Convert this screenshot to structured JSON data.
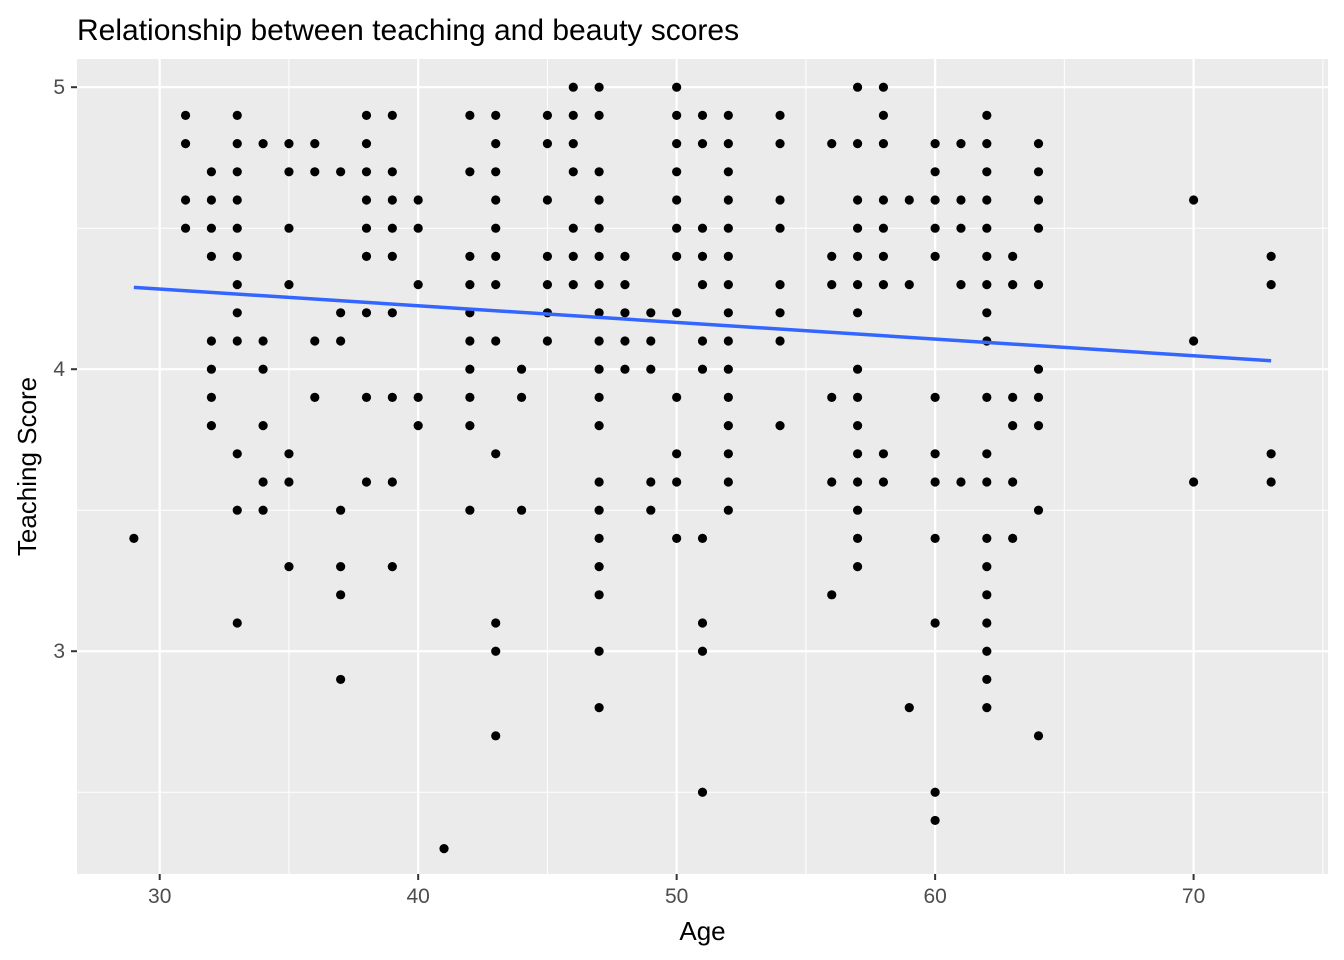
{
  "chart_data": {
    "type": "scatter",
    "title": "Relationship between teaching and beauty scores",
    "xlabel": "Age",
    "ylabel": "Teaching Score",
    "xlim": [
      26.8,
      75.2
    ],
    "ylim": [
      2.21,
      5.1
    ],
    "x_ticks": [
      30,
      40,
      50,
      60,
      70
    ],
    "y_ticks": [
      3,
      4,
      5
    ],
    "grid": true,
    "legend": "none",
    "colors": {
      "panel": "#ebebeb",
      "grid_major": "#ffffff",
      "points": "#000000",
      "trend": "#3366ff",
      "tick_text": "#4d4d4d"
    },
    "trend_line": {
      "x": [
        29,
        73
      ],
      "y": [
        4.29,
        4.03
      ]
    },
    "points": [
      [
        29,
        3.4
      ],
      [
        31,
        4.9
      ],
      [
        31,
        4.8
      ],
      [
        31,
        4.6
      ],
      [
        31,
        4.5
      ],
      [
        32,
        4.7
      ],
      [
        32,
        4.6
      ],
      [
        32,
        4.5
      ],
      [
        32,
        4.4
      ],
      [
        32,
        4.1
      ],
      [
        32,
        4.0
      ],
      [
        32,
        3.9
      ],
      [
        32,
        3.8
      ],
      [
        33,
        4.9
      ],
      [
        33,
        4.8
      ],
      [
        33,
        4.7
      ],
      [
        33,
        4.6
      ],
      [
        33,
        4.5
      ],
      [
        33,
        4.4
      ],
      [
        33,
        4.3
      ],
      [
        33,
        4.2
      ],
      [
        33,
        4.1
      ],
      [
        33,
        3.7
      ],
      [
        33,
        3.5
      ],
      [
        33,
        3.1
      ],
      [
        34,
        4.8
      ],
      [
        34,
        4.1
      ],
      [
        34,
        4.0
      ],
      [
        34,
        3.8
      ],
      [
        34,
        3.6
      ],
      [
        34,
        3.5
      ],
      [
        35,
        4.8
      ],
      [
        35,
        4.7
      ],
      [
        35,
        4.5
      ],
      [
        35,
        4.3
      ],
      [
        35,
        3.7
      ],
      [
        35,
        3.6
      ],
      [
        35,
        3.3
      ],
      [
        36,
        4.8
      ],
      [
        36,
        4.7
      ],
      [
        36,
        4.1
      ],
      [
        36,
        3.9
      ],
      [
        37,
        4.7
      ],
      [
        37,
        4.2
      ],
      [
        37,
        4.1
      ],
      [
        37,
        3.5
      ],
      [
        37,
        3.3
      ],
      [
        37,
        3.2
      ],
      [
        37,
        2.9
      ],
      [
        38,
        4.9
      ],
      [
        38,
        4.8
      ],
      [
        38,
        4.7
      ],
      [
        38,
        4.6
      ],
      [
        38,
        4.5
      ],
      [
        38,
        4.4
      ],
      [
        38,
        4.2
      ],
      [
        38,
        3.9
      ],
      [
        38,
        3.6
      ],
      [
        39,
        4.9
      ],
      [
        39,
        4.7
      ],
      [
        39,
        4.6
      ],
      [
        39,
        4.5
      ],
      [
        39,
        4.4
      ],
      [
        39,
        4.2
      ],
      [
        39,
        3.9
      ],
      [
        39,
        3.6
      ],
      [
        39,
        3.3
      ],
      [
        40,
        4.6
      ],
      [
        40,
        4.5
      ],
      [
        40,
        4.3
      ],
      [
        40,
        3.9
      ],
      [
        40,
        3.8
      ],
      [
        41,
        2.3
      ],
      [
        42,
        4.9
      ],
      [
        42,
        4.7
      ],
      [
        42,
        4.4
      ],
      [
        42,
        4.3
      ],
      [
        42,
        4.2
      ],
      [
        42,
        4.1
      ],
      [
        42,
        4.0
      ],
      [
        42,
        3.9
      ],
      [
        42,
        3.8
      ],
      [
        42,
        3.5
      ],
      [
        43,
        4.9
      ],
      [
        43,
        4.8
      ],
      [
        43,
        4.7
      ],
      [
        43,
        4.6
      ],
      [
        43,
        4.5
      ],
      [
        43,
        4.4
      ],
      [
        43,
        4.3
      ],
      [
        43,
        4.1
      ],
      [
        43,
        3.7
      ],
      [
        43,
        3.1
      ],
      [
        43,
        3.0
      ],
      [
        43,
        2.7
      ],
      [
        44,
        4.0
      ],
      [
        44,
        3.9
      ],
      [
        44,
        3.5
      ],
      [
        45,
        4.9
      ],
      [
        45,
        4.8
      ],
      [
        45,
        4.6
      ],
      [
        45,
        4.4
      ],
      [
        45,
        4.3
      ],
      [
        45,
        4.2
      ],
      [
        45,
        4.1
      ],
      [
        46,
        5.0
      ],
      [
        46,
        4.9
      ],
      [
        46,
        4.8
      ],
      [
        46,
        4.7
      ],
      [
        46,
        4.5
      ],
      [
        46,
        4.4
      ],
      [
        46,
        4.3
      ],
      [
        47,
        5.0
      ],
      [
        47,
        4.9
      ],
      [
        47,
        4.7
      ],
      [
        47,
        4.6
      ],
      [
        47,
        4.5
      ],
      [
        47,
        4.4
      ],
      [
        47,
        4.3
      ],
      [
        47,
        4.2
      ],
      [
        47,
        4.1
      ],
      [
        47,
        4.0
      ],
      [
        47,
        3.9
      ],
      [
        47,
        3.8
      ],
      [
        47,
        3.6
      ],
      [
        47,
        3.5
      ],
      [
        47,
        3.4
      ],
      [
        47,
        3.3
      ],
      [
        47,
        3.2
      ],
      [
        47,
        3.0
      ],
      [
        47,
        2.8
      ],
      [
        48,
        4.4
      ],
      [
        48,
        4.3
      ],
      [
        48,
        4.2
      ],
      [
        48,
        4.1
      ],
      [
        48,
        4.0
      ],
      [
        49,
        4.2
      ],
      [
        49,
        4.1
      ],
      [
        49,
        4.0
      ],
      [
        49,
        3.6
      ],
      [
        49,
        3.5
      ],
      [
        50,
        5.0
      ],
      [
        50,
        4.9
      ],
      [
        50,
        4.8
      ],
      [
        50,
        4.7
      ],
      [
        50,
        4.6
      ],
      [
        50,
        4.5
      ],
      [
        50,
        4.4
      ],
      [
        50,
        4.2
      ],
      [
        50,
        3.9
      ],
      [
        50,
        3.7
      ],
      [
        50,
        3.6
      ],
      [
        50,
        3.4
      ],
      [
        51,
        4.9
      ],
      [
        51,
        4.8
      ],
      [
        51,
        4.5
      ],
      [
        51,
        4.4
      ],
      [
        51,
        4.3
      ],
      [
        51,
        4.1
      ],
      [
        51,
        4.0
      ],
      [
        51,
        3.4
      ],
      [
        51,
        3.1
      ],
      [
        51,
        3.0
      ],
      [
        51,
        2.5
      ],
      [
        52,
        4.9
      ],
      [
        52,
        4.8
      ],
      [
        52,
        4.7
      ],
      [
        52,
        4.6
      ],
      [
        52,
        4.5
      ],
      [
        52,
        4.4
      ],
      [
        52,
        4.3
      ],
      [
        52,
        4.2
      ],
      [
        52,
        4.1
      ],
      [
        52,
        4.0
      ],
      [
        52,
        3.9
      ],
      [
        52,
        3.8
      ],
      [
        52,
        3.7
      ],
      [
        52,
        3.6
      ],
      [
        52,
        3.5
      ],
      [
        54,
        4.9
      ],
      [
        54,
        4.8
      ],
      [
        54,
        4.6
      ],
      [
        54,
        4.5
      ],
      [
        54,
        4.3
      ],
      [
        54,
        4.2
      ],
      [
        54,
        4.1
      ],
      [
        54,
        3.8
      ],
      [
        56,
        4.8
      ],
      [
        56,
        4.4
      ],
      [
        56,
        4.3
      ],
      [
        56,
        3.9
      ],
      [
        56,
        3.6
      ],
      [
        56,
        3.2
      ],
      [
        57,
        5.0
      ],
      [
        57,
        4.8
      ],
      [
        57,
        4.6
      ],
      [
        57,
        4.5
      ],
      [
        57,
        4.4
      ],
      [
        57,
        4.3
      ],
      [
        57,
        4.2
      ],
      [
        57,
        4.0
      ],
      [
        57,
        3.9
      ],
      [
        57,
        3.8
      ],
      [
        57,
        3.7
      ],
      [
        57,
        3.6
      ],
      [
        57,
        3.5
      ],
      [
        57,
        3.4
      ],
      [
        57,
        3.3
      ],
      [
        58,
        5.0
      ],
      [
        58,
        4.9
      ],
      [
        58,
        4.8
      ],
      [
        58,
        4.6
      ],
      [
        58,
        4.5
      ],
      [
        58,
        4.4
      ],
      [
        58,
        4.3
      ],
      [
        58,
        3.7
      ],
      [
        58,
        3.6
      ],
      [
        59,
        4.6
      ],
      [
        59,
        4.3
      ],
      [
        59,
        2.8
      ],
      [
        60,
        4.8
      ],
      [
        60,
        4.7
      ],
      [
        60,
        4.6
      ],
      [
        60,
        4.5
      ],
      [
        60,
        4.4
      ],
      [
        60,
        3.9
      ],
      [
        60,
        3.7
      ],
      [
        60,
        3.6
      ],
      [
        60,
        3.4
      ],
      [
        60,
        3.1
      ],
      [
        60,
        2.5
      ],
      [
        60,
        2.4
      ],
      [
        61,
        4.8
      ],
      [
        61,
        4.6
      ],
      [
        61,
        4.5
      ],
      [
        61,
        4.3
      ],
      [
        61,
        3.6
      ],
      [
        62,
        4.9
      ],
      [
        62,
        4.8
      ],
      [
        62,
        4.7
      ],
      [
        62,
        4.6
      ],
      [
        62,
        4.5
      ],
      [
        62,
        4.4
      ],
      [
        62,
        4.3
      ],
      [
        62,
        4.2
      ],
      [
        62,
        4.1
      ],
      [
        62,
        3.9
      ],
      [
        62,
        3.7
      ],
      [
        62,
        3.6
      ],
      [
        62,
        3.4
      ],
      [
        62,
        3.3
      ],
      [
        62,
        3.2
      ],
      [
        62,
        3.1
      ],
      [
        62,
        3.0
      ],
      [
        62,
        2.9
      ],
      [
        62,
        2.8
      ],
      [
        63,
        4.4
      ],
      [
        63,
        4.3
      ],
      [
        63,
        3.9
      ],
      [
        63,
        3.8
      ],
      [
        63,
        3.6
      ],
      [
        63,
        3.4
      ],
      [
        64,
        4.8
      ],
      [
        64,
        4.7
      ],
      [
        64,
        4.6
      ],
      [
        64,
        4.5
      ],
      [
        64,
        4.3
      ],
      [
        64,
        4.0
      ],
      [
        64,
        3.9
      ],
      [
        64,
        3.8
      ],
      [
        64,
        3.5
      ],
      [
        64,
        2.7
      ],
      [
        70,
        4.6
      ],
      [
        70,
        4.1
      ],
      [
        70,
        3.6
      ],
      [
        73,
        4.4
      ],
      [
        73,
        4.3
      ],
      [
        73,
        3.7
      ],
      [
        73,
        3.6
      ]
    ]
  }
}
